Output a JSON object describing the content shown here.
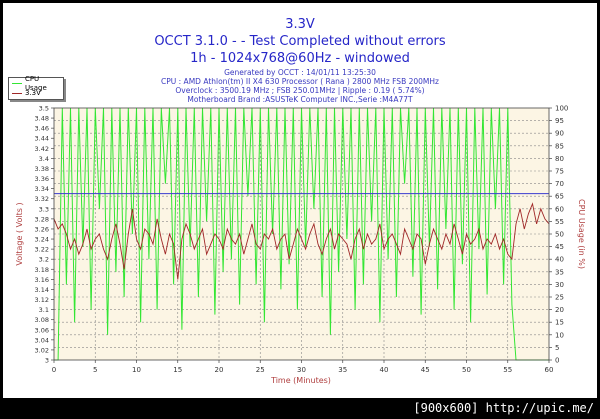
{
  "header": {
    "title": "3.3V",
    "subtitle1": "OCCT 3.1.0 -  - Test Completed without errors",
    "subtitle2": "1h - 1024x768@60Hz - windowed",
    "info": [
      "Generated by OCCT : 14/01/11 13:25:30",
      "CPU : AMD Athlon(tm) II X4 630 Processor ( Rana ) 2800 MHz FSB 200MHz",
      "Overclock : 3500.19 MHz ; FSB 250.01MHz | Ripple : 0.19 ( 5.74%)",
      "Motherboard Brand :ASUSTeK Computer INC.,Serie :M4A77T"
    ]
  },
  "footer": "[900x600] http://upic.me/",
  "colors": {
    "cpu": "#33e633",
    "volt": "#a02828",
    "ref": "#3a3ad0",
    "plot_bg": "#fcf5e4",
    "title": "#2626c8",
    "axis_title": "#b04040"
  },
  "chart_data": {
    "type": "line",
    "title": "3.3V",
    "xlabel": "Time (Minutes)",
    "ylabel": "Voltage ( Volts )",
    "y2label": "CPU Usage (in %)",
    "xlim": [
      0,
      60
    ],
    "ylim": [
      3.0,
      3.5
    ],
    "y2lim": [
      0,
      100
    ],
    "grid": true,
    "legend_position": "top-left",
    "x_ticks": [
      "0",
      "5",
      "10",
      "15",
      "20",
      "25",
      "30",
      "35",
      "40",
      "45",
      "50",
      "55",
      "60"
    ],
    "y_ticks": [
      "3",
      "3.02",
      "3.04",
      "3.06",
      "3.08",
      "3.1",
      "3.12",
      "3.14",
      "3.16",
      "3.18",
      "3.2",
      "3.22",
      "3.24",
      "3.26",
      "3.28",
      "3.3",
      "3.32",
      "3.34",
      "3.36",
      "3.38",
      "3.4",
      "3.42",
      "3.44",
      "3.46",
      "3.48",
      "3.5"
    ],
    "y2_ticks": [
      "0",
      "5",
      "10",
      "15",
      "20",
      "25",
      "30",
      "35",
      "40",
      "45",
      "50",
      "55",
      "60",
      "65",
      "70",
      "75",
      "80",
      "85",
      "90",
      "95",
      "100"
    ],
    "reference_line": 3.33,
    "x_step": 0.5,
    "series": [
      {
        "name": "CPU Usage",
        "axis": "right",
        "values": [
          0,
          0,
          100,
          30,
          100,
          15,
          100,
          45,
          100,
          20,
          100,
          60,
          100,
          10,
          100,
          35,
          100,
          25,
          100,
          50,
          100,
          15,
          100,
          40,
          100,
          20,
          100,
          70,
          100,
          30,
          100,
          12,
          100,
          45,
          100,
          25,
          100,
          55,
          100,
          18,
          100,
          35,
          100,
          40,
          100,
          22,
          100,
          65,
          100,
          30,
          100,
          15,
          100,
          50,
          100,
          28,
          100,
          38,
          100,
          20,
          100,
          45,
          100,
          60,
          100,
          25,
          100,
          10,
          100,
          35,
          100,
          48,
          100,
          20,
          100,
          30,
          100,
          55,
          100,
          15,
          100,
          40,
          100,
          25,
          100,
          70,
          100,
          33,
          100,
          18,
          100,
          45,
          100,
          28,
          100,
          52,
          100,
          20,
          100,
          38,
          100,
          15,
          100,
          44,
          100,
          26,
          100,
          60,
          100,
          30,
          100,
          22,
          0,
          0,
          0,
          0,
          0,
          0,
          0,
          0,
          0
        ]
      },
      {
        "name": "3.3V",
        "axis": "left",
        "values": [
          3.28,
          3.26,
          3.27,
          3.25,
          3.22,
          3.24,
          3.21,
          3.23,
          3.26,
          3.22,
          3.24,
          3.25,
          3.22,
          3.2,
          3.24,
          3.27,
          3.23,
          3.18,
          3.25,
          3.3,
          3.24,
          3.22,
          3.26,
          3.25,
          3.23,
          3.28,
          3.24,
          3.21,
          3.25,
          3.23,
          3.16,
          3.24,
          3.27,
          3.25,
          3.22,
          3.24,
          3.26,
          3.21,
          3.23,
          3.25,
          3.24,
          3.22,
          3.26,
          3.24,
          3.23,
          3.25,
          3.21,
          3.24,
          3.27,
          3.23,
          3.22,
          3.25,
          3.24,
          3.26,
          3.22,
          3.24,
          3.25,
          3.2,
          3.23,
          3.26,
          3.24,
          3.22,
          3.25,
          3.27,
          3.23,
          3.21,
          3.24,
          3.26,
          3.22,
          3.25,
          3.24,
          3.23,
          3.2,
          3.24,
          3.26,
          3.22,
          3.25,
          3.23,
          3.24,
          3.27,
          3.22,
          3.24,
          3.25,
          3.23,
          3.21,
          3.26,
          3.24,
          3.22,
          3.25,
          3.24,
          3.19,
          3.23,
          3.26,
          3.24,
          3.22,
          3.25,
          3.23,
          3.27,
          3.24,
          3.21,
          3.25,
          3.23,
          3.24,
          3.26,
          3.22,
          3.24,
          3.23,
          3.25,
          3.22,
          3.24,
          3.21,
          3.2,
          3.27,
          3.3,
          3.26,
          3.29,
          3.31,
          3.27,
          3.3,
          3.28,
          3.27
        ]
      }
    ]
  }
}
